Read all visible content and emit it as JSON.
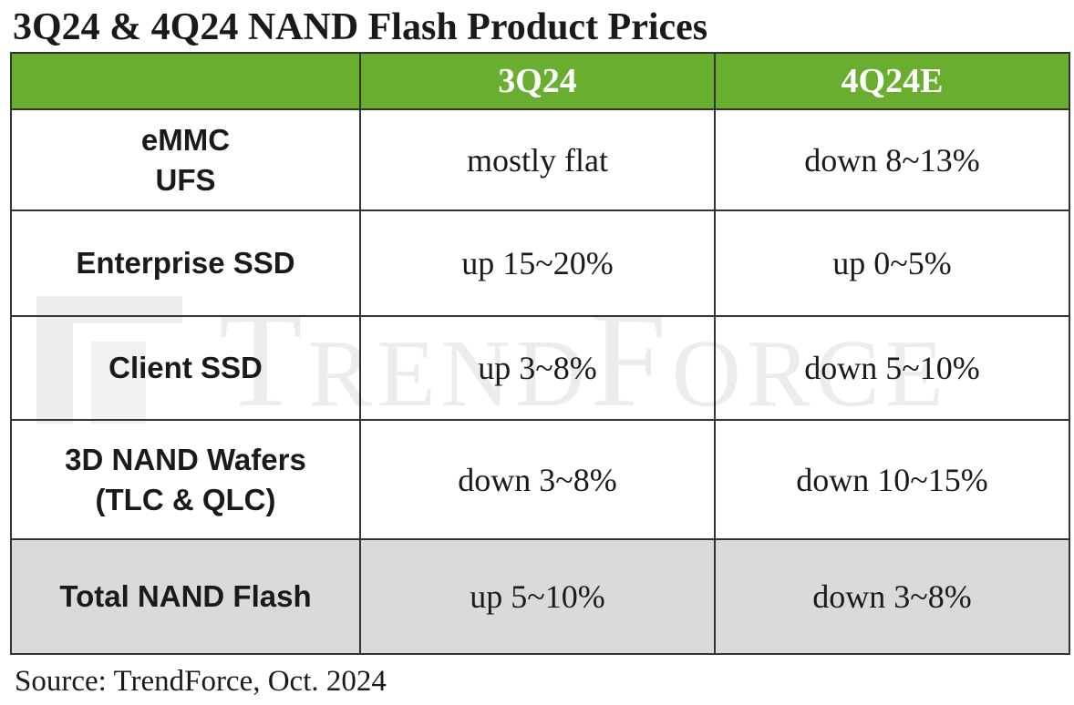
{
  "title": "3Q24 & 4Q24 NAND Flash Product Prices",
  "watermark": "TrendForce",
  "colors": {
    "header_bg": "#6aae2f",
    "header_text": "#ffffff",
    "total_row_bg": "#dcd9d9",
    "border": "#333333"
  },
  "chart_data": {
    "type": "table",
    "title": "3Q24 & 4Q24 NAND Flash Product Prices",
    "columns": [
      "",
      "3Q24",
      "4Q24E"
    ],
    "rows": [
      {
        "label_lines": [
          "eMMC",
          "UFS"
        ],
        "q3": "mostly flat",
        "q4": "down 8~13%"
      },
      {
        "label_lines": [
          "Enterprise SSD"
        ],
        "q3": "up 15~20%",
        "q4": "up 0~5%"
      },
      {
        "label_lines": [
          "Client SSD"
        ],
        "q3": "up 3~8%",
        "q4": "down 5~10%"
      },
      {
        "label_lines": [
          "3D NAND Wafers",
          "(TLC & QLC)"
        ],
        "q3": "down 3~8%",
        "q4": "down 10~15%"
      },
      {
        "label_lines": [
          "Total NAND Flash"
        ],
        "q3": "up 5~10%",
        "q4": "down 3~8%"
      }
    ]
  },
  "source": "Source: TrendForce, Oct. 2024"
}
